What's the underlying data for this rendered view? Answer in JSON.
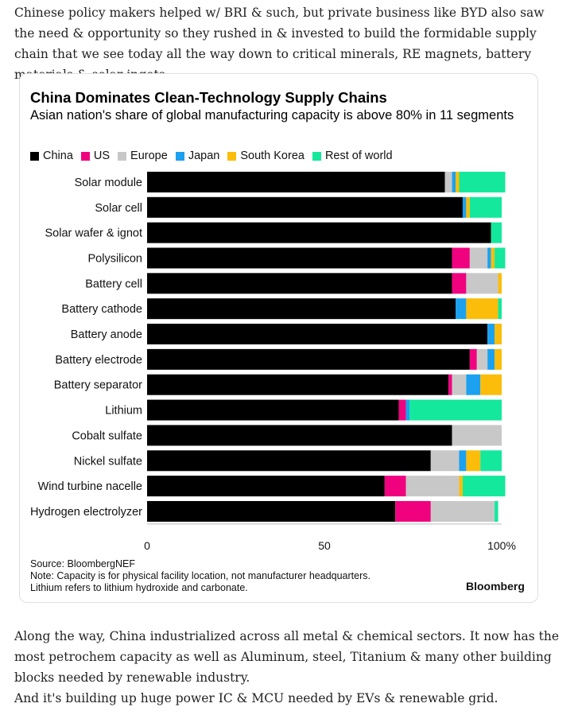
{
  "intro_text": "Chinese policy makers helped w/ BRI & such, but private business like BYD also saw the need & opportunity so they rushed in & invested to build the formidable supply chain that we see today all the way down to critical minerals, RE magnets, battery materials & solar ingots.",
  "outro_lines": [
    "Along the way, China industrialized across all metal & chemical sectors. It now has the most petrochem capacity as well as Aluminum, steel, Titanium & many other building blocks needed by renewable industry.",
    "And it's building up huge power IC & MCU needed by EVs & renewable grid."
  ],
  "footer": {
    "source": "Source: BloombergNEF",
    "note1": "Note: Capacity is for physical facility location, not manufacturer headquarters.",
    "note2": "Lithium refers to lithium hydroxide and carbonate.",
    "brand": "Bloomberg"
  },
  "chart_data": {
    "type": "bar",
    "orientation": "horizontal",
    "stacked": true,
    "title": "China Dominates Clean-Technology Supply Chains",
    "subtitle": "Asian nation's share of global manufacturing capacity is above 80% in 11 segments",
    "categories": [
      "Solar module",
      "Solar cell",
      "Solar wafer & ignot",
      "Polysilicon",
      "Battery cell",
      "Battery cathode",
      "Battery anode",
      "Battery electrode",
      "Battery separator",
      "Lithium",
      "Cobalt sulfate",
      "Nickel sulfate",
      "Wind turbine nacelle",
      "Hydrogen electrolyzer"
    ],
    "series": [
      {
        "name": "China",
        "color": "#000000",
        "values": [
          84,
          89,
          97,
          86,
          86,
          87,
          96,
          91,
          85,
          71,
          86,
          80,
          67,
          70
        ]
      },
      {
        "name": "US",
        "color": "#f0027f",
        "values": [
          0,
          0,
          0,
          5,
          4,
          0,
          0,
          2,
          1,
          2,
          0,
          0,
          6,
          10
        ]
      },
      {
        "name": "Europe",
        "color": "#c8c8c8",
        "values": [
          2,
          0,
          0,
          5,
          9,
          0,
          0,
          3,
          4,
          0,
          14,
          8,
          15,
          18
        ]
      },
      {
        "name": "Japan",
        "color": "#1ba1f0",
        "values": [
          1,
          1,
          0,
          1,
          0,
          3,
          2,
          2,
          4,
          1,
          0,
          2,
          0,
          0
        ]
      },
      {
        "name": "South Korea",
        "color": "#fbbd0a",
        "values": [
          1,
          1,
          0,
          1,
          1,
          9,
          2,
          2,
          6,
          0,
          0,
          4,
          1,
          0
        ]
      },
      {
        "name": "Rest of world",
        "color": "#13e89c",
        "values": [
          13,
          9,
          3,
          3,
          0,
          1,
          0,
          0,
          0,
          26,
          0,
          6,
          12,
          1
        ]
      }
    ],
    "xlim": [
      0,
      100
    ],
    "xticks": [
      {
        "value": 0,
        "label": "0"
      },
      {
        "value": 50,
        "label": "50"
      },
      {
        "value": 100,
        "label": "100%"
      }
    ],
    "legend_position": "top-left"
  }
}
